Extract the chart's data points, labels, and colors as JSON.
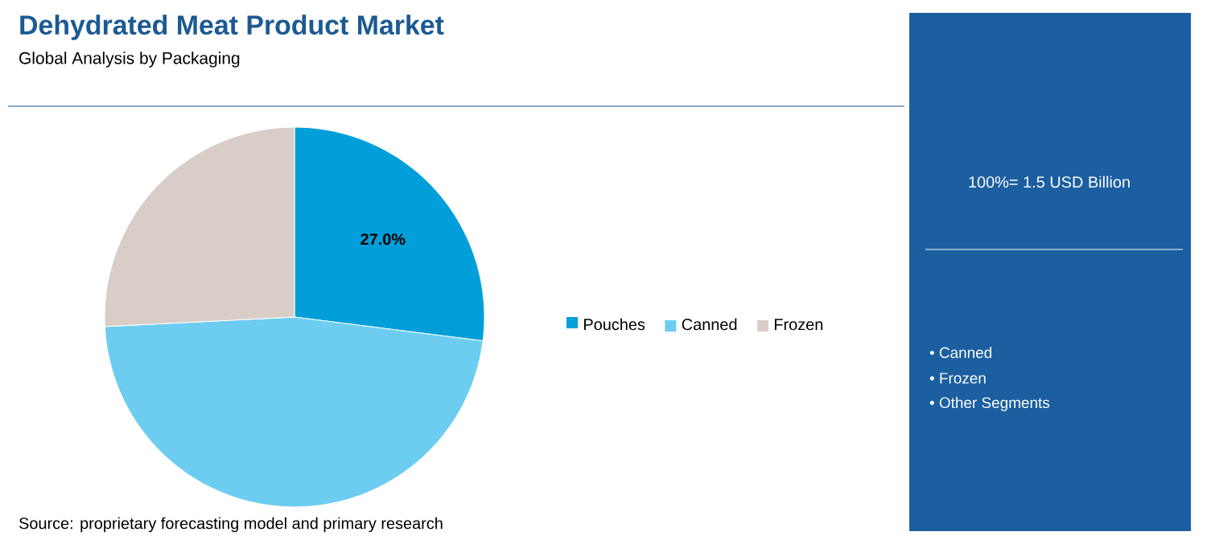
{
  "chart_data": {
    "type": "pie",
    "title": "Dehydrated Meat Product Market",
    "subtitle": "Global Analysis by Packaging",
    "categories": [
      "Pouches",
      "Canned",
      "Frozen"
    ],
    "values": [
      27.0,
      47.2,
      25.8
    ],
    "colors": [
      "#009fd9",
      "#6ccdf1",
      "#d9cdc8"
    ],
    "value_labels": [
      "27.0%",
      null,
      null
    ],
    "legend": "right",
    "annotations": [
      "Source: proprietary forecasting model and primary research",
      "100%= 1.5 USD Billion",
      "• Canned",
      "• Frozen",
      "• Other Segments"
    ]
  }
}
